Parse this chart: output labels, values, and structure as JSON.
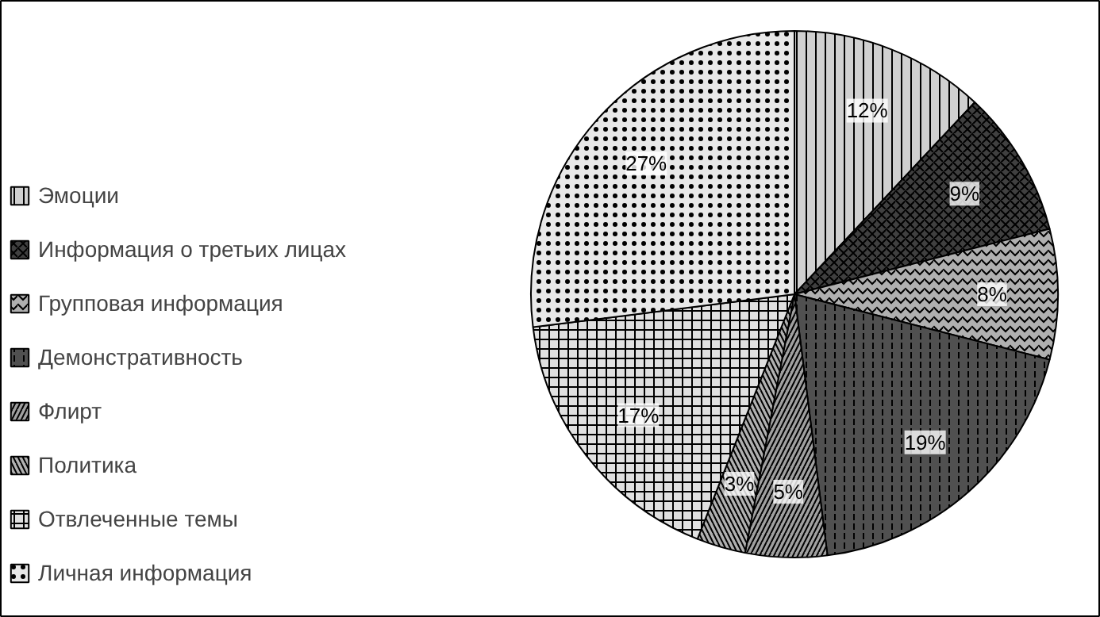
{
  "chart_data": {
    "type": "pie",
    "categories": [
      "Эмоции",
      "Информация о третьих лицах",
      "Групповая информация",
      "Демонстративность",
      "Флирт",
      "Политика",
      "Отвлеченные темы",
      "Личная информация"
    ],
    "values": [
      12,
      9,
      8,
      19,
      5,
      3,
      17,
      27
    ],
    "value_labels": [
      "12%",
      "9%",
      "8%",
      "19%",
      "5%",
      "3%",
      "17%",
      "27%"
    ],
    "colors": [
      "#d0d0d0",
      "#404040",
      "#b0b0b0",
      "#505050",
      "#a0a0a0",
      "#b0b0b0",
      "#e0e0e0",
      "#e8e8e8"
    ],
    "legend": "left"
  }
}
